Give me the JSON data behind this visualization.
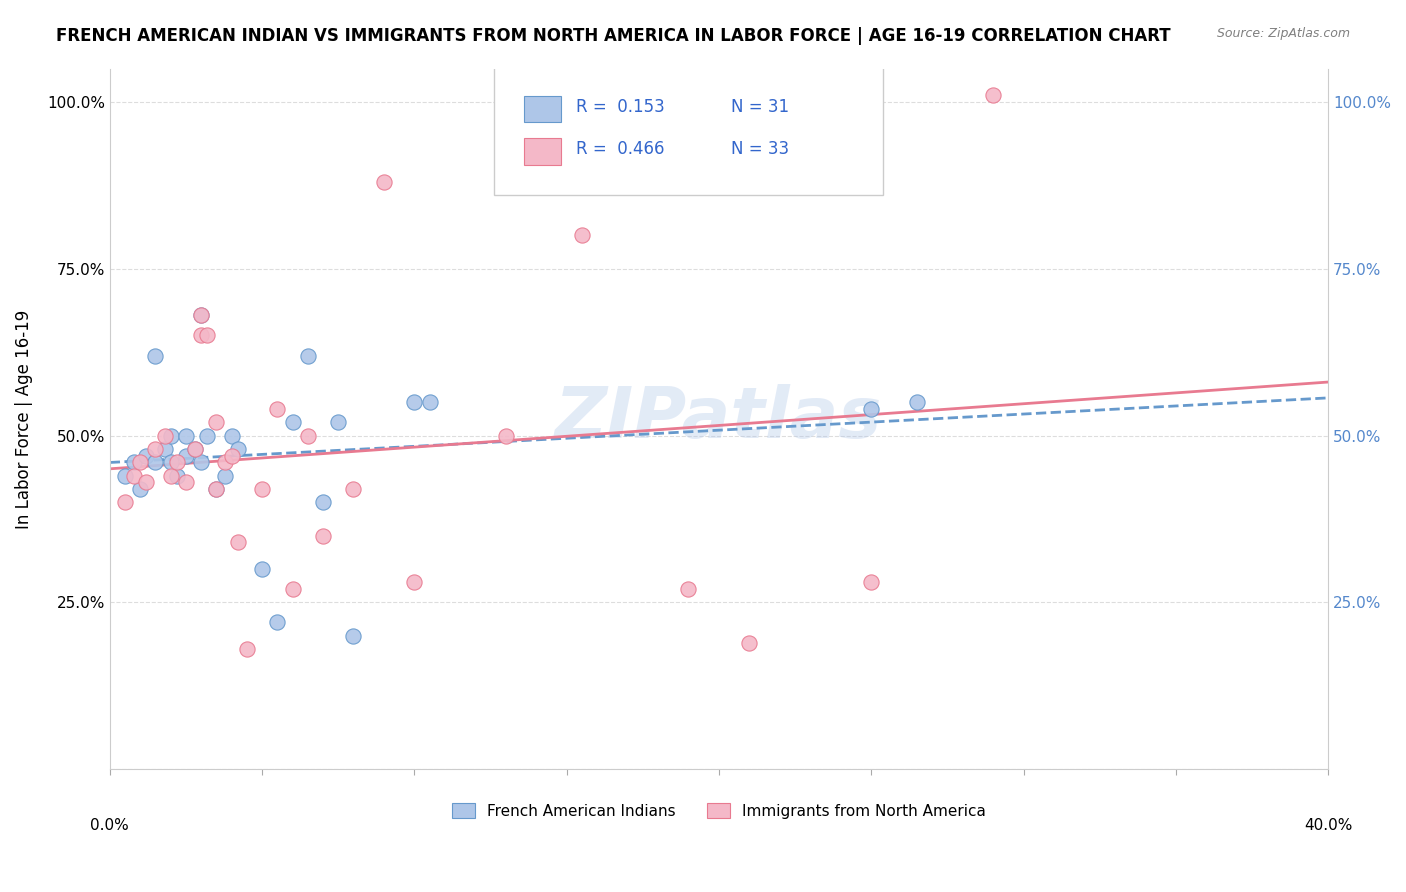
{
  "title": "FRENCH AMERICAN INDIAN VS IMMIGRANTS FROM NORTH AMERICA IN LABOR FORCE | AGE 16-19 CORRELATION CHART",
  "source": "Source: ZipAtlas.com",
  "ylabel": "In Labor Force | Age 16-19",
  "blue_R": 0.153,
  "blue_N": 31,
  "pink_R": 0.466,
  "pink_N": 33,
  "blue_scatter_x": [
    0.005,
    0.008,
    0.01,
    0.012,
    0.015,
    0.015,
    0.018,
    0.02,
    0.02,
    0.022,
    0.025,
    0.025,
    0.028,
    0.03,
    0.03,
    0.032,
    0.035,
    0.038,
    0.04,
    0.042,
    0.05,
    0.055,
    0.06,
    0.065,
    0.07,
    0.075,
    0.08,
    0.1,
    0.105,
    0.25,
    0.265
  ],
  "blue_scatter_y": [
    0.44,
    0.46,
    0.42,
    0.47,
    0.62,
    0.46,
    0.48,
    0.5,
    0.46,
    0.44,
    0.5,
    0.47,
    0.48,
    0.68,
    0.46,
    0.5,
    0.42,
    0.44,
    0.5,
    0.48,
    0.3,
    0.22,
    0.52,
    0.62,
    0.4,
    0.52,
    0.2,
    0.55,
    0.55,
    0.54,
    0.55
  ],
  "pink_scatter_x": [
    0.005,
    0.008,
    0.01,
    0.012,
    0.015,
    0.018,
    0.02,
    0.022,
    0.025,
    0.028,
    0.03,
    0.03,
    0.032,
    0.035,
    0.035,
    0.038,
    0.04,
    0.042,
    0.045,
    0.05,
    0.055,
    0.06,
    0.065,
    0.07,
    0.08,
    0.09,
    0.1,
    0.13,
    0.155,
    0.19,
    0.21,
    0.25,
    0.29
  ],
  "pink_scatter_y": [
    0.4,
    0.44,
    0.46,
    0.43,
    0.48,
    0.5,
    0.44,
    0.46,
    0.43,
    0.48,
    0.68,
    0.65,
    0.65,
    0.52,
    0.42,
    0.46,
    0.47,
    0.34,
    0.18,
    0.42,
    0.54,
    0.27,
    0.5,
    0.35,
    0.42,
    0.88,
    0.28,
    0.5,
    0.8,
    0.27,
    0.19,
    0.28,
    1.01
  ],
  "watermark": "ZIPatlas",
  "bg_color": "#ffffff",
  "blue_color": "#aec6e8",
  "pink_color": "#f4b8c8",
  "blue_line_color": "#6699cc",
  "pink_line_color": "#e87a90",
  "right_axis_color": "#5588cc",
  "grid_color": "#dddddd",
  "ytick_vals": [
    0.0,
    0.25,
    0.5,
    0.75,
    1.0
  ],
  "ytick_labels_left": [
    "",
    "25.0%",
    "50.0%",
    "75.0%",
    "100.0%"
  ],
  "ytick_labels_right": [
    "",
    "25.0%",
    "50.0%",
    "75.0%",
    "100.0%"
  ],
  "xtick_vals": [
    0.0,
    0.05,
    0.1,
    0.15,
    0.2,
    0.25,
    0.3,
    0.35,
    0.4
  ],
  "xlim": [
    0.0,
    0.4
  ],
  "ylim": [
    0.0,
    1.05
  ]
}
